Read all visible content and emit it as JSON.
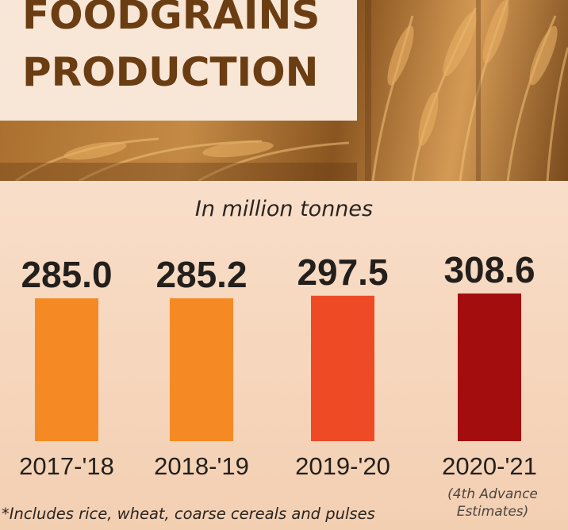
{
  "header": {
    "title_line1": "FOODGRAINS",
    "title_line2": "PRODUCTION"
  },
  "subtitle": "In million tonnes",
  "chart_data": {
    "type": "bar",
    "title": "FOODGRAINS PRODUCTION",
    "ylabel": "In million tonnes",
    "categories": [
      "2017-'18",
      "2018-'19",
      "2019-'20",
      "2020-'21"
    ],
    "values": [
      285.0,
      285.2,
      297.5,
      308.6
    ],
    "value_labels": [
      "285.0",
      "285.2",
      "297.5",
      "308.6"
    ],
    "bar_colors": [
      "#f58a24",
      "#f58a24",
      "#ee4a25",
      "#a40d0e"
    ],
    "grid": false
  },
  "note": "(4th Advance Estimates)",
  "footnote": "*Includes rice, wheat, coarse cereals and pulses",
  "colors": {
    "title": "#6b3d12",
    "text": "#231f1c",
    "background": "#f7d9c1"
  },
  "image": {
    "banner": "wheat-field-photo"
  }
}
